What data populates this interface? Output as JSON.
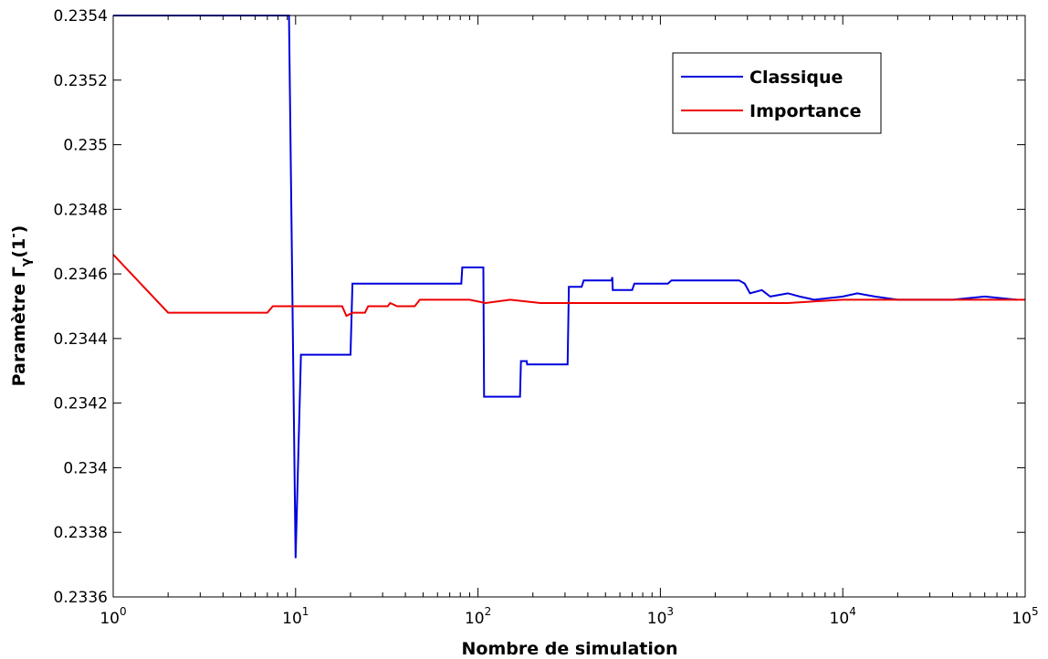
{
  "chart_data": {
    "type": "line",
    "xscale": "log",
    "xlim": [
      1,
      100000
    ],
    "ylim": [
      0.2336,
      0.2354
    ],
    "xticks": [
      1,
      10,
      100,
      1000,
      10000,
      100000
    ],
    "xtick_labels": [
      {
        "base": "10",
        "exp": "0"
      },
      {
        "base": "10",
        "exp": "1"
      },
      {
        "base": "10",
        "exp": "2"
      },
      {
        "base": "10",
        "exp": "3"
      },
      {
        "base": "10",
        "exp": "4"
      },
      {
        "base": "10",
        "exp": "5"
      }
    ],
    "yticks": [
      0.2336,
      0.2338,
      0.234,
      0.2342,
      0.2344,
      0.2346,
      0.2348,
      0.235,
      0.2352,
      0.2354
    ],
    "ytick_labels": [
      "0.2336",
      "0.2338",
      "0.234",
      "0.2342",
      "0.2344",
      "0.2346",
      "0.2348",
      "0.235",
      "0.2352",
      "0.2354"
    ],
    "xlabel": "Nombre de simulation",
    "ylabel": {
      "main": "Paramètre Γ",
      "sub": "γ",
      "arg": "(1",
      "sup": "-",
      "close": ")"
    },
    "legend_position": "top-right",
    "grid": false,
    "series": [
      {
        "name": "Classique",
        "color": "#0000dd",
        "points": [
          [
            1,
            0.2354
          ],
          [
            9.2,
            0.2354
          ],
          [
            10,
            0.23372
          ],
          [
            10.7,
            0.23435
          ],
          [
            20,
            0.23435
          ],
          [
            20.5,
            0.23457
          ],
          [
            81,
            0.23457
          ],
          [
            82,
            0.23462
          ],
          [
            107,
            0.23462
          ],
          [
            108,
            0.23422
          ],
          [
            170,
            0.23422
          ],
          [
            172,
            0.23433
          ],
          [
            185,
            0.23433
          ],
          [
            186,
            0.23432
          ],
          [
            310,
            0.23432
          ],
          [
            315,
            0.23456
          ],
          [
            370,
            0.23456
          ],
          [
            380,
            0.23458
          ],
          [
            540,
            0.23458
          ],
          [
            545,
            0.23459
          ],
          [
            548,
            0.23455
          ],
          [
            700,
            0.23455
          ],
          [
            720,
            0.23457
          ],
          [
            1100,
            0.23457
          ],
          [
            1150,
            0.23458
          ],
          [
            2700,
            0.23458
          ],
          [
            2900,
            0.23457
          ],
          [
            3100,
            0.23454
          ],
          [
            3600,
            0.23455
          ],
          [
            4000,
            0.23453
          ],
          [
            5000,
            0.23454
          ],
          [
            5800,
            0.23453
          ],
          [
            7000,
            0.23452
          ],
          [
            10000,
            0.23453
          ],
          [
            12000,
            0.23454
          ],
          [
            15000,
            0.23453
          ],
          [
            20000,
            0.23452
          ],
          [
            30000,
            0.23452
          ],
          [
            40000,
            0.23452
          ],
          [
            60000,
            0.23453
          ],
          [
            90000,
            0.23452
          ]
        ]
      },
      {
        "name": "Importance",
        "color": "#ee0000",
        "points": [
          [
            1,
            0.23466
          ],
          [
            2,
            0.23448
          ],
          [
            3,
            0.23448
          ],
          [
            7,
            0.23448
          ],
          [
            7.5,
            0.2345
          ],
          [
            11,
            0.2345
          ],
          [
            11.5,
            0.2345
          ],
          [
            18,
            0.2345
          ],
          [
            19,
            0.23447
          ],
          [
            20.5,
            0.23448
          ],
          [
            24,
            0.23448
          ],
          [
            25,
            0.2345
          ],
          [
            32,
            0.2345
          ],
          [
            33,
            0.23451
          ],
          [
            36,
            0.2345
          ],
          [
            45,
            0.2345
          ],
          [
            48,
            0.23452
          ],
          [
            80,
            0.23452
          ],
          [
            90,
            0.23452
          ],
          [
            110,
            0.23451
          ],
          [
            150,
            0.23452
          ],
          [
            220,
            0.23451
          ],
          [
            300,
            0.23451
          ],
          [
            500,
            0.23451
          ],
          [
            1000,
            0.23451
          ],
          [
            2000,
            0.23451
          ],
          [
            5000,
            0.23451
          ],
          [
            10000,
            0.23452
          ],
          [
            30000,
            0.23452
          ],
          [
            100000,
            0.23452
          ]
        ]
      }
    ]
  }
}
